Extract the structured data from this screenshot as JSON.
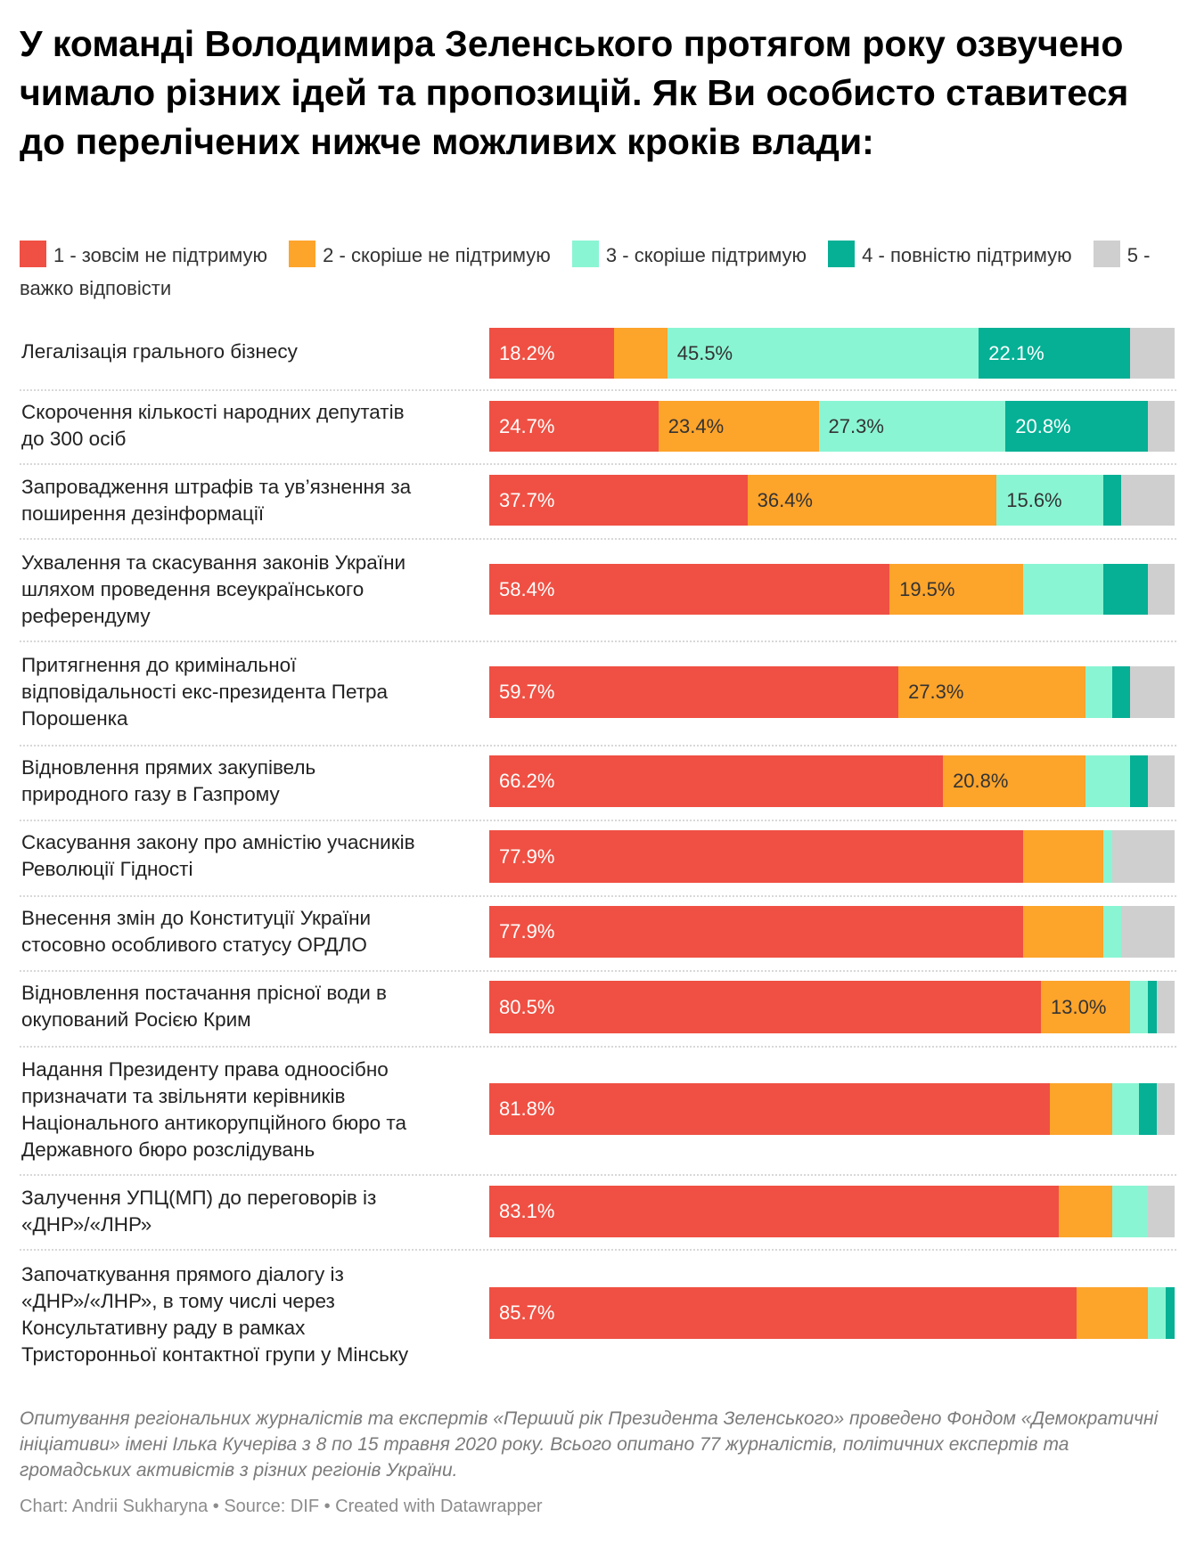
{
  "header": {
    "title": "У команді Володимира Зеленського протягом року озвучено чимало різних ідей та пропозицій. Як Ви особисто ставитеся до перелічених нижче можливих кроків влади:"
  },
  "legend": [
    {
      "label": "1 - зовсім не підтримую",
      "color": "#ef5043"
    },
    {
      "label": "2 - скоріше не підтримую",
      "color": "#fda42b"
    },
    {
      "label": "3 - скоріше підтримую",
      "color": "#8af5d3"
    },
    {
      "label": "4 - повністю підтримую",
      "color": "#05b095"
    },
    {
      "label": "5 - важко відповісти",
      "color": "#cfcfcf"
    }
  ],
  "chart_data": {
    "type": "bar",
    "orientation": "horizontal",
    "stacked": true,
    "normalized": true,
    "unit": "%",
    "title": "У команді Володимира Зеленського протягом року озвучено чимало різних ідей та пропозицій. Як Ви особисто ставитеся до перелічених нижче можливих кроків влади:",
    "xlabel": "",
    "ylabel": "",
    "xlim": [
      0,
      100
    ],
    "grid": false,
    "legend_position": "top-left",
    "label_colors": [
      "#ffffff",
      "#333333",
      "#333333",
      "#ffffff",
      "#333333"
    ],
    "series": [
      {
        "name": "1 - зовсім не підтримую",
        "color": "#ef5043",
        "values": [
          18.2,
          24.7,
          37.7,
          58.4,
          59.7,
          66.2,
          77.9,
          77.9,
          80.5,
          81.8,
          83.1,
          85.7
        ]
      },
      {
        "name": "2 - скоріше не підтримую",
        "color": "#fda42b",
        "values": [
          7.8,
          23.4,
          36.4,
          19.5,
          27.3,
          20.8,
          11.7,
          11.7,
          13.0,
          9.1,
          7.8,
          10.4
        ]
      },
      {
        "name": "3 - скоріше підтримую",
        "color": "#8af5d3",
        "values": [
          45.5,
          27.3,
          15.6,
          11.7,
          3.9,
          6.5,
          1.3,
          2.6,
          2.6,
          3.9,
          5.2,
          2.6
        ]
      },
      {
        "name": "4 - повністю підтримую",
        "color": "#05b095",
        "values": [
          22.1,
          20.8,
          2.6,
          6.5,
          2.6,
          2.6,
          0,
          0,
          1.3,
          2.6,
          0,
          1.3
        ]
      },
      {
        "name": "5 - важко відповісти",
        "color": "#cfcfcf",
        "values": [
          6.5,
          3.9,
          7.8,
          3.9,
          6.5,
          3.9,
          9.1,
          7.8,
          2.6,
          2.6,
          3.9,
          0
        ]
      }
    ],
    "categories": [
      "Легалізація грального бізнесу",
      "Скорочення кількості народних депутатів до 300 осіб",
      "Запровадження штрафів та ув’язнення за поширення дезінформації",
      "Ухвалення та скасування законів України шляхом проведення всеукраїнського референдуму",
      "Притягнення до кримінальної відповідальності екс-президента Петра Порошенка",
      "Відновлення прямих закупівель природного газу в Газпрому",
      "Скасування закону про амністію учасників Революції Гідності",
      "Внесення змін до Конституції України стосовно особливого статусу ОРДЛО",
      "Відновлення постачання прісної води в окупований Росією Крим",
      "Надання Президенту права одноосібно призначати та звільняти керівників Національного антикорупційного бюро та Державного бюро розслідувань",
      "Залучення УПЦ(МП) до переговорів із «ДНР»/«ЛНР»",
      "Започаткування прямого діалогу із «ДНР»/«ЛНР», в тому числі через Консультативну раду в рамках Тристоронньої контактної групи у Мінську"
    ],
    "category_lines": [
      [
        "Легалізація грального бізнесу"
      ],
      [
        "Скорочення кількості народних депутатів",
        "до 300 осіб"
      ],
      [
        "Запровадження штрафів та ув’язнення за",
        "поширення дезінформації"
      ],
      [
        "Ухвалення та скасування законів України",
        "шляхом проведення всеукраїнського",
        "референдуму"
      ],
      [
        "Притягнення до кримінальної",
        "відповідальності екс-президента Петра",
        "Порошенка"
      ],
      [
        "Відновлення прямих закупівель",
        "природного газу в Газпрому"
      ],
      [
        "Скасування закону про амністію учасників",
        "Революції Гідності"
      ],
      [
        "Внесення змін до Конституції України",
        "стосовно особливого статусу ОРДЛО"
      ],
      [
        "Відновлення постачання прісної води в",
        "окупований Росією Крим"
      ],
      [
        "Надання Президенту права одноосібно",
        "призначати та звільняти керівників",
        "Національного антикорупційного бюро та",
        "Державного бюро розслідувань"
      ],
      [
        "Залучення УПЦ(МП) до переговорів із",
        "«ДНР»/«ЛНР»"
      ],
      [
        "Започаткування прямого діалогу із",
        "«ДНР»/«ЛНР», в тому числі через",
        "Консультативну раду в рамках",
        "Тристоронньої контактної групи у Мінську"
      ]
    ],
    "visible_value_labels": [
      [
        "18.2%",
        null,
        "45.5%",
        "22.1%",
        null
      ],
      [
        "24.7%",
        "23.4%",
        "27.3%",
        "20.8%",
        null
      ],
      [
        "37.7%",
        "36.4%",
        "15.6%",
        null,
        null
      ],
      [
        "58.4%",
        "19.5%",
        null,
        null,
        null
      ],
      [
        "59.7%",
        "27.3%",
        null,
        null,
        null
      ],
      [
        "66.2%",
        "20.8%",
        null,
        null,
        null
      ],
      [
        "77.9%",
        null,
        null,
        null,
        null
      ],
      [
        "77.9%",
        null,
        null,
        null,
        null
      ],
      [
        "80.5%",
        "13.0%",
        null,
        null,
        null
      ],
      [
        "81.8%",
        null,
        null,
        null,
        null
      ],
      [
        "83.1%",
        null,
        null,
        null,
        null
      ],
      [
        "85.7%",
        null,
        null,
        null,
        null
      ]
    ]
  },
  "footer": {
    "notes": "Опитування регіональних журналістів та експертів «Перший рік Президента Зеленського» проведено Фондом «Демократичні ініціативи» імені Ілька Кучеріва з 8 по 15 травня 2020 року. Всього опитано 77 журналістів, політичних експертів та громадських активістів з різних регіонів України.",
    "byline": "Chart: Andrii Sukharyna • Source: DIF • Created with Datawrapper"
  }
}
